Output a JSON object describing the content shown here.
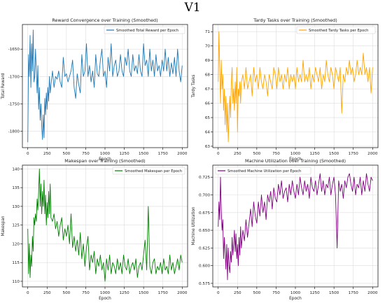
{
  "figure": {
    "suptitle": "V1"
  },
  "chart_data": [
    {
      "type": "line",
      "title": "Reward Convergence over Training (Smoothed)",
      "xlabel": "Epoch",
      "ylabel": "Total Reward",
      "xlim": [
        -70,
        2070
      ],
      "ylim": [
        -1830,
        -1605
      ],
      "xticks": [
        0,
        250,
        500,
        750,
        1000,
        1250,
        1500,
        1750,
        2000
      ],
      "yticks": [
        -1800,
        -1750,
        -1700,
        -1650
      ],
      "grid": true,
      "legend": "top-right",
      "series": [
        {
          "name": "Smoothed Total Reward per Epoch",
          "color": "#1f77b4",
          "x": [
            0,
            10,
            20,
            30,
            40,
            50,
            60,
            70,
            80,
            90,
            100,
            110,
            120,
            130,
            140,
            150,
            160,
            170,
            180,
            190,
            200,
            210,
            220,
            230,
            240,
            250,
            260,
            270,
            280,
            290,
            300,
            320,
            340,
            360,
            380,
            400,
            420,
            440,
            460,
            480,
            500,
            520,
            540,
            560,
            580,
            600,
            620,
            640,
            660,
            680,
            700,
            720,
            740,
            760,
            780,
            800,
            820,
            840,
            860,
            880,
            900,
            920,
            940,
            960,
            980,
            1000,
            1020,
            1040,
            1060,
            1080,
            1100,
            1120,
            1140,
            1160,
            1180,
            1200,
            1220,
            1240,
            1260,
            1280,
            1300,
            1320,
            1340,
            1360,
            1380,
            1400,
            1420,
            1440,
            1460,
            1480,
            1500,
            1520,
            1540,
            1560,
            1580,
            1600,
            1620,
            1640,
            1660,
            1680,
            1700,
            1720,
            1740,
            1760,
            1780,
            1800,
            1820,
            1840,
            1860,
            1880,
            1900,
            1920,
            1940,
            1960,
            1980,
            2000
          ],
          "y": [
            -1820,
            -1660,
            -1700,
            -1625,
            -1720,
            -1640,
            -1690,
            -1615,
            -1710,
            -1700,
            -1650,
            -1690,
            -1730,
            -1680,
            -1760,
            -1720,
            -1780,
            -1750,
            -1790,
            -1815,
            -1770,
            -1812,
            -1740,
            -1770,
            -1730,
            -1760,
            -1720,
            -1745,
            -1700,
            -1730,
            -1715,
            -1690,
            -1720,
            -1700,
            -1705,
            -1690,
            -1710,
            -1720,
            -1665,
            -1700,
            -1695,
            -1710,
            -1700,
            -1690,
            -1670,
            -1720,
            -1740,
            -1695,
            -1715,
            -1730,
            -1660,
            -1700,
            -1690,
            -1640,
            -1700,
            -1680,
            -1710,
            -1690,
            -1720,
            -1660,
            -1695,
            -1700,
            -1670,
            -1650,
            -1700,
            -1690,
            -1720,
            -1665,
            -1690,
            -1640,
            -1700,
            -1680,
            -1670,
            -1700,
            -1690,
            -1660,
            -1690,
            -1700,
            -1665,
            -1680,
            -1650,
            -1690,
            -1700,
            -1660,
            -1690,
            -1680,
            -1695,
            -1660,
            -1690,
            -1700,
            -1640,
            -1680,
            -1670,
            -1700,
            -1650,
            -1690,
            -1670,
            -1700,
            -1660,
            -1690,
            -1680,
            -1700,
            -1670,
            -1690,
            -1650,
            -1690,
            -1665,
            -1700,
            -1675,
            -1695,
            -1665,
            -1700,
            -1650,
            -1690,
            -1710,
            -1680
          ]
        }
      ]
    },
    {
      "type": "line",
      "title": "Tardy Tasks over Training (Smoothed)",
      "xlabel": "Epoch",
      "ylabel": "Tardy Tasks",
      "xlim": [
        -70,
        2070
      ],
      "ylim": [
        62.9,
        71.5
      ],
      "xticks": [
        0,
        250,
        500,
        750,
        1000,
        1250,
        1500,
        1750,
        2000
      ],
      "yticks": [
        63,
        64,
        65,
        66,
        67,
        68,
        69,
        70,
        71
      ],
      "grid": true,
      "legend": "top-right",
      "series": [
        {
          "name": "Smoothed Tardy Tasks per Epoch",
          "color": "#ffa500",
          "x": [
            0,
            10,
            20,
            30,
            40,
            50,
            60,
            70,
            80,
            90,
            100,
            110,
            120,
            130,
            140,
            150,
            160,
            170,
            180,
            190,
            200,
            210,
            220,
            230,
            240,
            250,
            260,
            270,
            280,
            290,
            300,
            320,
            340,
            360,
            380,
            400,
            420,
            440,
            460,
            480,
            500,
            520,
            540,
            560,
            580,
            600,
            620,
            640,
            660,
            680,
            700,
            720,
            740,
            760,
            780,
            800,
            820,
            840,
            860,
            880,
            900,
            920,
            940,
            960,
            980,
            1000,
            1020,
            1040,
            1060,
            1080,
            1100,
            1120,
            1140,
            1160,
            1180,
            1200,
            1220,
            1240,
            1260,
            1280,
            1300,
            1320,
            1340,
            1360,
            1380,
            1400,
            1420,
            1440,
            1460,
            1480,
            1500,
            1520,
            1540,
            1560,
            1580,
            1600,
            1620,
            1640,
            1660,
            1680,
            1700,
            1720,
            1740,
            1760,
            1780,
            1800,
            1820,
            1840,
            1860,
            1880,
            1900,
            1920,
            1940,
            1960,
            1980,
            2000
          ],
          "y": [
            67.5,
            71.0,
            68.5,
            66.0,
            69.0,
            67.0,
            68.0,
            65.5,
            67.0,
            64.5,
            66.5,
            64.0,
            66.0,
            63.3,
            65.0,
            66.5,
            65.0,
            67.5,
            68.5,
            66.0,
            67.0,
            65.5,
            67.5,
            66.0,
            68.5,
            64.0,
            67.0,
            66.5,
            67.5,
            66.0,
            67.5,
            68.0,
            67.0,
            68.5,
            67.0,
            67.5,
            68.0,
            66.5,
            68.5,
            67.5,
            68.0,
            67.0,
            68.5,
            67.5,
            67.0,
            68.0,
            67.5,
            66.5,
            68.0,
            67.5,
            67.0,
            68.5,
            68.0,
            67.0,
            68.5,
            67.5,
            68.0,
            67.0,
            68.0,
            67.5,
            68.5,
            67.0,
            68.0,
            67.5,
            68.0,
            67.0,
            68.5,
            67.5,
            68.0,
            67.5,
            69.0,
            67.5,
            68.0,
            67.5,
            68.5,
            67.0,
            68.0,
            67.5,
            68.5,
            68.0,
            67.5,
            68.5,
            67.0,
            68.0,
            67.5,
            69.0,
            68.0,
            67.5,
            68.5,
            68.0,
            67.0,
            68.5,
            68.0,
            67.5,
            68.5,
            65.3,
            68.0,
            67.5,
            68.5,
            68.0,
            69.0,
            68.0,
            68.5,
            67.5,
            68.0,
            69.0,
            68.0,
            68.5,
            68.0,
            69.5,
            68.0,
            68.5,
            67.5,
            68.5,
            66.7,
            68.5
          ]
        }
      ]
    },
    {
      "type": "line",
      "title": "Makespan over Training (Smoothed)",
      "xlabel": "Epoch",
      "ylabel": "Makespan",
      "xlim": [
        -70,
        2070
      ],
      "ylim": [
        108.5,
        141
      ],
      "xticks": [
        0,
        250,
        500,
        750,
        1000,
        1250,
        1500,
        1750,
        2000
      ],
      "yticks": [
        110,
        115,
        120,
        125,
        130,
        135,
        140
      ],
      "grid": true,
      "legend": "top-right",
      "series": [
        {
          "name": "Smoothed Makespan per Epoch",
          "color": "#008000",
          "x": [
            0,
            10,
            20,
            30,
            40,
            50,
            60,
            70,
            80,
            90,
            100,
            110,
            120,
            130,
            140,
            150,
            160,
            170,
            180,
            190,
            200,
            210,
            220,
            230,
            240,
            250,
            260,
            270,
            280,
            290,
            300,
            320,
            340,
            360,
            380,
            400,
            420,
            440,
            460,
            480,
            500,
            520,
            540,
            560,
            580,
            600,
            620,
            640,
            660,
            680,
            700,
            720,
            740,
            760,
            780,
            800,
            820,
            840,
            860,
            880,
            900,
            920,
            940,
            960,
            980,
            1000,
            1020,
            1040,
            1060,
            1080,
            1100,
            1120,
            1140,
            1160,
            1180,
            1200,
            1220,
            1240,
            1260,
            1280,
            1300,
            1320,
            1340,
            1360,
            1380,
            1400,
            1420,
            1440,
            1460,
            1480,
            1500,
            1520,
            1540,
            1560,
            1580,
            1600,
            1620,
            1640,
            1660,
            1680,
            1700,
            1720,
            1740,
            1760,
            1780,
            1800,
            1820,
            1840,
            1860,
            1880,
            1900,
            1920,
            1940,
            1960,
            1980,
            2000
          ],
          "y": [
            124,
            112,
            120,
            111,
            117,
            114,
            122,
            118,
            127,
            125,
            128,
            126,
            132,
            129,
            134,
            140,
            130,
            136,
            128,
            134,
            130,
            137,
            128,
            133,
            125,
            131,
            127,
            134,
            128,
            136,
            127,
            126,
            128,
            124,
            126,
            122,
            125,
            127,
            121,
            124,
            122,
            125,
            120,
            128,
            119,
            122,
            118,
            121,
            117,
            123,
            116,
            120,
            114,
            119,
            122,
            113,
            117,
            115,
            118,
            112,
            116,
            114,
            117,
            113,
            115,
            110,
            116,
            113,
            117,
            112,
            115,
            114,
            112,
            116,
            113,
            115,
            112,
            117,
            114,
            113,
            116,
            112,
            114,
            115,
            113,
            116,
            111,
            114,
            115,
            113,
            117,
            121,
            113,
            130,
            114,
            112,
            115,
            116,
            112,
            114,
            113,
            115,
            112,
            116,
            113,
            114,
            112,
            117,
            113,
            115,
            112,
            114,
            116,
            113,
            117,
            115
          ]
        }
      ]
    },
    {
      "type": "line",
      "title": "Machine Utilization over Training (Smoothed)",
      "xlabel": "Epoch",
      "ylabel": "Machine Utilization",
      "xlim": [
        -70,
        2070
      ],
      "ylim": [
        0.57,
        0.742
      ],
      "xticks": [
        0,
        250,
        500,
        750,
        1000,
        1250,
        1500,
        1750,
        2000
      ],
      "yticks": [
        0.575,
        0.6,
        0.625,
        0.65,
        0.675,
        0.7,
        0.725
      ],
      "grid": true,
      "legend": "top-left",
      "series": [
        {
          "name": "Smoothed Machine Utilization per Epoch",
          "color": "#800080",
          "x": [
            0,
            10,
            20,
            30,
            40,
            50,
            60,
            70,
            80,
            90,
            100,
            110,
            120,
            130,
            140,
            150,
            160,
            170,
            180,
            190,
            200,
            210,
            220,
            230,
            240,
            250,
            260,
            270,
            280,
            290,
            300,
            320,
            340,
            360,
            380,
            400,
            420,
            440,
            460,
            480,
            500,
            520,
            540,
            560,
            580,
            600,
            620,
            640,
            660,
            680,
            700,
            720,
            740,
            760,
            780,
            800,
            820,
            840,
            860,
            880,
            900,
            920,
            940,
            960,
            980,
            1000,
            1020,
            1040,
            1060,
            1080,
            1100,
            1120,
            1140,
            1160,
            1180,
            1200,
            1220,
            1240,
            1260,
            1280,
            1300,
            1320,
            1340,
            1360,
            1380,
            1400,
            1420,
            1440,
            1460,
            1480,
            1500,
            1520,
            1540,
            1560,
            1580,
            1600,
            1620,
            1640,
            1660,
            1680,
            1700,
            1720,
            1740,
            1760,
            1780,
            1800,
            1820,
            1840,
            1860,
            1880,
            1900,
            1920,
            1940,
            1960,
            1980,
            2000
          ],
          "y": [
            0.655,
            0.69,
            0.665,
            0.725,
            0.68,
            0.65,
            0.665,
            0.61,
            0.64,
            0.62,
            0.595,
            0.63,
            0.58,
            0.625,
            0.6,
            0.59,
            0.62,
            0.605,
            0.64,
            0.615,
            0.63,
            0.65,
            0.62,
            0.645,
            0.61,
            0.63,
            0.6,
            0.64,
            0.615,
            0.655,
            0.625,
            0.65,
            0.635,
            0.665,
            0.64,
            0.66,
            0.68,
            0.655,
            0.69,
            0.67,
            0.66,
            0.69,
            0.67,
            0.7,
            0.675,
            0.69,
            0.665,
            0.7,
            0.69,
            0.705,
            0.68,
            0.71,
            0.695,
            0.69,
            0.715,
            0.7,
            0.72,
            0.695,
            0.705,
            0.71,
            0.69,
            0.715,
            0.7,
            0.72,
            0.705,
            0.695,
            0.715,
            0.7,
            0.725,
            0.71,
            0.7,
            0.72,
            0.705,
            0.715,
            0.695,
            0.725,
            0.71,
            0.705,
            0.72,
            0.7,
            0.715,
            0.73,
            0.705,
            0.72,
            0.7,
            0.715,
            0.71,
            0.725,
            0.7,
            0.715,
            0.725,
            0.7,
            0.625,
            0.72,
            0.705,
            0.715,
            0.695,
            0.72,
            0.71,
            0.725,
            0.73,
            0.715,
            0.705,
            0.725,
            0.7,
            0.715,
            0.71,
            0.725,
            0.7,
            0.72,
            0.705,
            0.73,
            0.715,
            0.705,
            0.725,
            0.72
          ]
        }
      ]
    }
  ]
}
